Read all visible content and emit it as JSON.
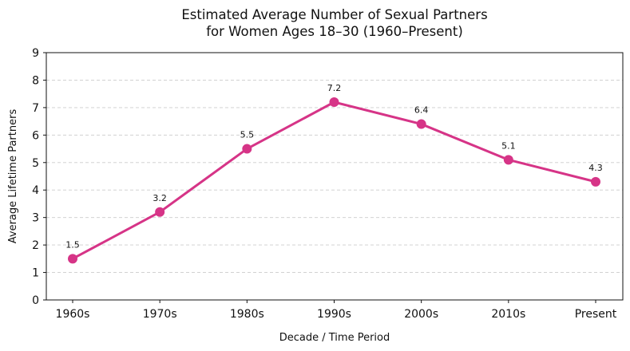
{
  "chart_data": {
    "type": "line",
    "title": "Estimated Average Number of Sexual Partners\nfor Women Ages 18–30 (1960–Present)",
    "xlabel": "Decade / Time Period",
    "ylabel": "Average Lifetime Partners",
    "categories": [
      "1960s",
      "1970s",
      "1980s",
      "1990s",
      "2000s",
      "2010s",
      "Present"
    ],
    "series": [
      {
        "values": [
          1.5,
          3.2,
          5.5,
          7.2,
          6.4,
          5.1,
          4.3
        ],
        "data_labels": [
          "1.5",
          "3.2",
          "5.5",
          "7.2",
          "6.4",
          "5.1",
          "4.3"
        ]
      }
    ],
    "ylim": [
      0,
      9
    ],
    "yticks": [
      0,
      1,
      2,
      3,
      4,
      5,
      6,
      7,
      8,
      9
    ],
    "grid": "horizontal dashed",
    "legend": "none",
    "colors": {
      "line": "#d63487",
      "marker": "#d63487",
      "grid": "#cccccc",
      "axis": "#111111"
    }
  }
}
